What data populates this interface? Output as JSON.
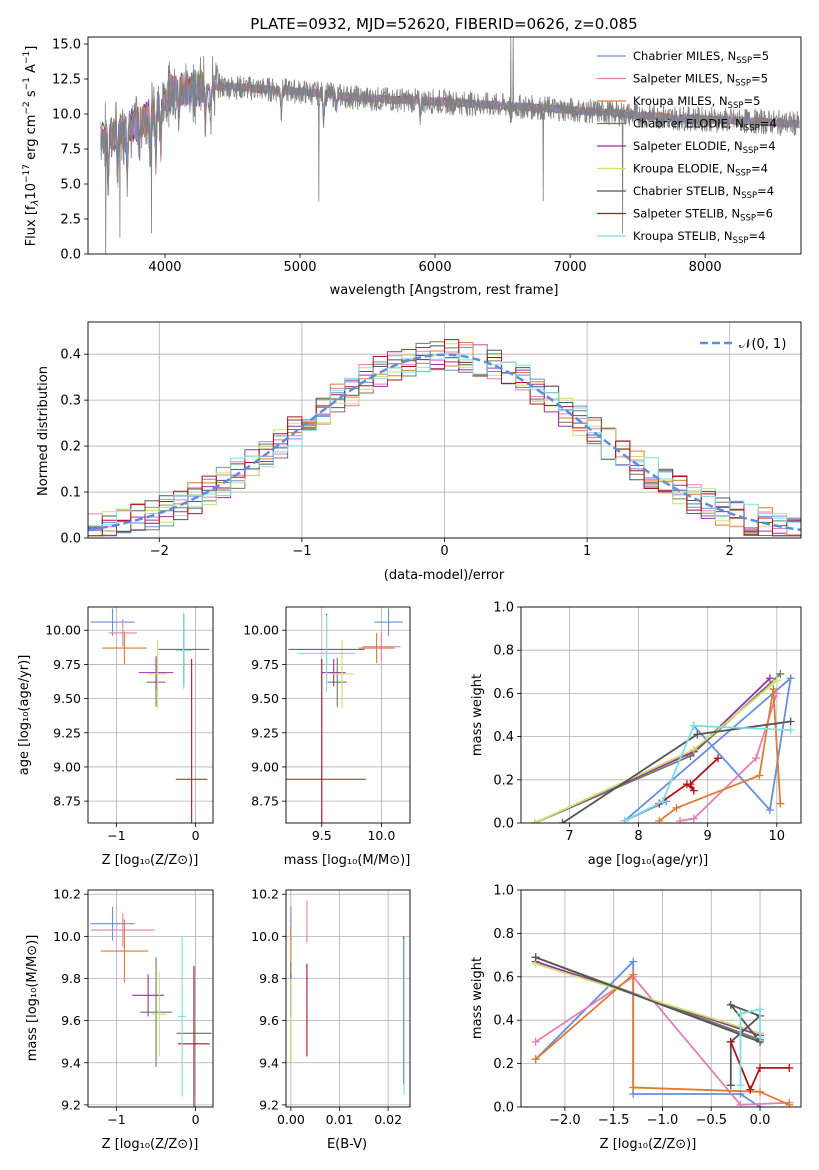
{
  "colors": {
    "chab_miles": "#6a8fdd",
    "salp_miles": "#e37fb8",
    "krou_miles": "#e07b2f",
    "chab_elodie": "#6e7c64",
    "salp_elodie": "#9d2fa8",
    "krou_elodie": "#c9e36a",
    "chab_stelib": "#555555",
    "salp_stelib": "#b0151c",
    "krou_stelib": "#7ddfe0",
    "data": "#808080",
    "gauss": "#5b8fdc"
  },
  "chart_data": [
    {
      "id": "spectrum",
      "type": "line",
      "title": "PLATE=0932, MJD=52620, FIBERID=0626, z=0.085",
      "xlabel": "wavelength [Angstrom, rest frame]",
      "ylabel": "Flux [f",
      "xlim": [
        3430,
        8710
      ],
      "ylim": [
        0,
        15.5
      ],
      "xticks": [
        "4000",
        "5000",
        "6000",
        "7000",
        "8000"
      ],
      "yticks": [
        "0.0",
        "2.5",
        "5.0",
        "7.5",
        "10.0",
        "12.5",
        "15.0"
      ],
      "grid": false,
      "legend_position": "top-right",
      "series": [
        {
          "name": "Chabrier MILES, N",
          "sub": "SSP",
          "suffix": "=5",
          "color": "chab_miles"
        },
        {
          "name": "Salpeter MILES, N",
          "sub": "SSP",
          "suffix": "=5",
          "color": "salp_miles"
        },
        {
          "name": "Kroupa MILES, N",
          "sub": "SSP",
          "suffix": "=5",
          "color": "krou_miles"
        },
        {
          "name": "Chabrier ELODIE, N",
          "sub": "SSP",
          "suffix": "=4",
          "color": "chab_elodie"
        },
        {
          "name": "Salpeter ELODIE, N",
          "sub": "SSP",
          "suffix": "=4",
          "color": "salp_elodie"
        },
        {
          "name": "Kroupa ELODIE, N",
          "sub": "SSP",
          "suffix": "=4",
          "color": "krou_elodie"
        },
        {
          "name": "Chabrier STELIB, N",
          "sub": "SSP",
          "suffix": "=4",
          "color": "chab_stelib"
        },
        {
          "name": "Salpeter STELIB, N",
          "sub": "SSP",
          "suffix": "=6",
          "color": "salp_stelib"
        },
        {
          "name": "Kroupa STELIB, N",
          "sub": "SSP",
          "suffix": "=4",
          "color": "krou_stelib"
        }
      ],
      "continuum": [
        [
          3520,
          8.3
        ],
        [
          3700,
          8.8
        ],
        [
          3900,
          10.0
        ],
        [
          4050,
          11.6
        ],
        [
          4400,
          12.0
        ],
        [
          5000,
          11.6
        ],
        [
          5500,
          11.1
        ],
        [
          6000,
          10.9
        ],
        [
          6500,
          10.6
        ],
        [
          7000,
          10.3
        ],
        [
          7400,
          10.0
        ],
        [
          7800,
          9.7
        ],
        [
          8300,
          9.5
        ],
        [
          8700,
          9.3
        ]
      ],
      "absorption": [
        [
          3580,
          3.5
        ],
        [
          3650,
          2.8
        ],
        [
          3720,
          2.5
        ],
        [
          3810,
          2.0
        ],
        [
          3890,
          3.0
        ],
        [
          3933,
          4.0
        ],
        [
          3968,
          3.5
        ],
        [
          4102,
          2.0
        ],
        [
          4300,
          2.8
        ],
        [
          4340,
          1.5
        ],
        [
          4861,
          1.5
        ],
        [
          5175,
          1.8
        ],
        [
          5270,
          1.0
        ],
        [
          5890,
          1.2
        ],
        [
          6563,
          1.0
        ]
      ],
      "spikes": [
        [
          3560,
          -8.3
        ],
        [
          3665,
          -8.5
        ],
        [
          3900,
          -8.3
        ],
        [
          5140,
          -8.0
        ],
        [
          6560,
          5.0
        ],
        [
          6580,
          4.6
        ],
        [
          6800,
          -7.5
        ],
        [
          7390,
          -8.0
        ]
      ]
    },
    {
      "id": "residuals",
      "type": "step",
      "xlabel": "(data-model)/error",
      "ylabel": "Normed distribution",
      "xlim": [
        -2.5,
        2.5
      ],
      "ylim": [
        0,
        0.47
      ],
      "xticks": [
        "−2",
        "−1",
        "0",
        "1",
        "2"
      ],
      "yticks": [
        "0.0",
        "0.1",
        "0.2",
        "0.3",
        "0.4"
      ],
      "grid": true,
      "bin_width": 0.1,
      "legend_position": "top-right",
      "gauss_label": "𝒩(0, 1)"
    },
    {
      "id": "age-vs-Z",
      "type": "errorbar",
      "xlabel": "Z [log₁₀(Z/Z⊙)]",
      "ylabel": "age  [log₁₀(age/yr)]",
      "xlim": [
        -1.36,
        0.22
      ],
      "ylim": [
        8.59,
        10.17
      ],
      "xticks": [
        "−1",
        "0"
      ],
      "yticks": [
        "8.75",
        "9.00",
        "9.25",
        "9.50",
        "9.75",
        "10.00"
      ],
      "grid": true,
      "points": [
        {
          "x": -1.05,
          "xerr": 0.28,
          "y": 10.06,
          "yerr": 0.1,
          "color": "chab_miles"
        },
        {
          "x": -0.92,
          "xerr": 0.18,
          "y": 9.98,
          "yerr": 0.1,
          "color": "salp_miles"
        },
        {
          "x": -0.9,
          "xerr": 0.28,
          "y": 9.87,
          "yerr": 0.12,
          "color": "krou_miles"
        },
        {
          "x": -0.5,
          "xerr": 0.12,
          "y": 9.62,
          "yerr": 0.18,
          "color": "chab_elodie"
        },
        {
          "x": -0.5,
          "xerr": 0.22,
          "y": 9.69,
          "yerr": 0.12,
          "color": "salp_elodie"
        },
        {
          "x": -0.48,
          "xerr": 0.12,
          "y": 9.68,
          "yerr": 0.25,
          "color": "krou_elodie"
        },
        {
          "x": -0.15,
          "xerr": 0.32,
          "y": 9.86,
          "yerr": 0.26,
          "color": "chab_stelib"
        },
        {
          "x": -0.05,
          "xerr": 0.2,
          "y": 8.91,
          "yerr": 0.88,
          "color": "salp_stelib"
        },
        {
          "x": -0.15,
          "xerr": 0.1,
          "y": 9.85,
          "yerr": 0.28,
          "color": "krou_stelib"
        }
      ]
    },
    {
      "id": "age-vs-mass",
      "type": "errorbar",
      "xlabel": "mass [log₁₀(M/M⊙)]",
      "ylabel": "",
      "xlim": [
        9.2,
        10.24
      ],
      "ylim": [
        8.59,
        10.17
      ],
      "xticks": [
        "9.5",
        "10.0"
      ],
      "yticks": [
        "8.75",
        "9.00",
        "9.25",
        "9.50",
        "9.75",
        "10.00"
      ],
      "grid": true,
      "points": [
        {
          "x": 10.06,
          "xerr": 0.12,
          "y": 10.06,
          "yerr": 0.1,
          "color": "chab_miles"
        },
        {
          "x": 10.0,
          "xerr": 0.16,
          "y": 9.88,
          "yerr": 0.1,
          "color": "salp_miles"
        },
        {
          "x": 9.96,
          "xerr": 0.15,
          "y": 9.87,
          "yerr": 0.11,
          "color": "krou_miles"
        },
        {
          "x": 9.63,
          "xerr": 0.08,
          "y": 9.62,
          "yerr": 0.18,
          "color": "chab_elodie"
        },
        {
          "x": 9.6,
          "xerr": 0.1,
          "y": 9.69,
          "yerr": 0.1,
          "color": "salp_elodie"
        },
        {
          "x": 9.67,
          "xerr": 0.1,
          "y": 9.68,
          "yerr": 0.25,
          "color": "krou_elodie"
        },
        {
          "x": 9.54,
          "xerr": 0.32,
          "y": 9.86,
          "yerr": 0.26,
          "color": "chab_stelib"
        },
        {
          "x": 9.5,
          "xerr": 0.37,
          "y": 8.91,
          "yerr": 0.88,
          "color": "salp_stelib"
        },
        {
          "x": 9.54,
          "xerr": 0.24,
          "y": 9.83,
          "yerr": 0.28,
          "color": "krou_stelib"
        }
      ]
    },
    {
      "id": "mass-weight-vs-age",
      "type": "line",
      "xlabel": "age  [log₁₀(age/yr)]",
      "ylabel": "mass weight",
      "xlim": [
        6.3,
        10.35
      ],
      "ylim": [
        0,
        1
      ],
      "xticks": [
        "7",
        "8",
        "9",
        "10"
      ],
      "yticks": [
        "0.0",
        "0.2",
        "0.4",
        "0.6",
        "0.8",
        "1.0"
      ],
      "grid": true,
      "series": [
        {
          "color": "chab_miles",
          "x": [
            8.8,
            9.9,
            10.2,
            7.8,
            8.4
          ],
          "y": [
            0.45,
            0.06,
            0.67,
            0.01,
            0.1
          ]
        },
        {
          "color": "salp_miles",
          "x": [
            8.6,
            8.8,
            9.7,
            10.0
          ],
          "y": [
            0.01,
            0.02,
            0.3,
            0.6
          ]
        },
        {
          "color": "krou_miles",
          "x": [
            8.3,
            8.55,
            9.75,
            9.95,
            10.05
          ],
          "y": [
            0.01,
            0.07,
            0.22,
            0.62,
            0.09
          ]
        },
        {
          "color": "chab_elodie",
          "x": [
            6.5,
            8.75,
            10.05
          ],
          "y": [
            0.0,
            0.31,
            0.69
          ]
        },
        {
          "color": "salp_elodie",
          "x": [
            6.5,
            8.8,
            9.9
          ],
          "y": [
            0.0,
            0.33,
            0.67
          ]
        },
        {
          "color": "krou_elodie",
          "x": [
            6.5,
            8.8,
            10.0
          ],
          "y": [
            0.0,
            0.34,
            0.66
          ]
        },
        {
          "color": "chab_stelib",
          "x": [
            6.9,
            8.85,
            10.2
          ],
          "y": [
            0.0,
            0.41,
            0.47
          ]
        },
        {
          "color": "salp_stelib",
          "x": [
            8.3,
            8.7,
            8.8,
            8.75,
            9.15
          ],
          "y": [
            0.09,
            0.18,
            0.15,
            0.18,
            0.3
          ]
        },
        {
          "color": "krou_stelib",
          "x": [
            7.8,
            8.35,
            8.8,
            10.2
          ],
          "y": [
            0.01,
            0.1,
            0.45,
            0.43
          ]
        }
      ]
    },
    {
      "id": "mass-vs-Z",
      "type": "errorbar",
      "xlabel": "Z [log₁₀(Z/Z⊙)]",
      "ylabel": "mass [log₁₀(M/M⊙)]",
      "xlim": [
        -1.36,
        0.22
      ],
      "ylim": [
        9.19,
        10.22
      ],
      "xticks": [
        "−1",
        "0"
      ],
      "yticks": [
        "9.2",
        "9.4",
        "9.6",
        "9.8",
        "10.0",
        "10.2"
      ],
      "grid": true,
      "points": [
        {
          "x": -1.05,
          "xerr": 0.28,
          "y": 10.06,
          "yerr": 0.08,
          "color": "chab_miles"
        },
        {
          "x": -0.92,
          "xerr": 0.4,
          "y": 10.03,
          "yerr": 0.08,
          "color": "salp_miles"
        },
        {
          "x": -0.9,
          "xerr": 0.3,
          "y": 9.93,
          "yerr": 0.15,
          "color": "krou_miles"
        },
        {
          "x": -0.5,
          "xerr": 0.2,
          "y": 9.64,
          "yerr": 0.26,
          "color": "chab_elodie"
        },
        {
          "x": -0.6,
          "xerr": 0.2,
          "y": 9.72,
          "yerr": 0.1,
          "color": "salp_elodie"
        },
        {
          "x": -0.46,
          "xerr": 0.1,
          "y": 9.63,
          "yerr": 0.2,
          "color": "krou_elodie"
        },
        {
          "x": -0.02,
          "xerr": 0.22,
          "y": 9.54,
          "yerr": 0.3,
          "color": "chab_stelib"
        },
        {
          "x": -0.02,
          "xerr": 0.2,
          "y": 9.49,
          "yerr": 0.37,
          "color": "salp_stelib"
        },
        {
          "x": -0.17,
          "xerr": 0.05,
          "y": 9.62,
          "yerr": 0.38,
          "color": "krou_stelib"
        }
      ]
    },
    {
      "id": "mass-vs-ebv",
      "type": "errorbar",
      "xlabel": "E(B-V)",
      "ylabel": "",
      "xlim": [
        -0.001,
        0.0245
      ],
      "ylim": [
        9.19,
        10.22
      ],
      "xticks": [
        "0.00",
        "0.01",
        "0.02"
      ],
      "yticks": [
        "9.2",
        "9.4",
        "9.6",
        "9.8",
        "10.0",
        "10.2"
      ],
      "grid": true,
      "points": [
        {
          "x": 0.0,
          "xerr": 0.0,
          "y": 10.06,
          "yerr": 0.08,
          "color": "chab_miles"
        },
        {
          "x": 0.0033,
          "xerr": 0.0,
          "y": 10.07,
          "yerr": 0.1,
          "color": "salp_miles"
        },
        {
          "x": 0.0,
          "xerr": 0.0,
          "y": 9.93,
          "yerr": 0.12,
          "color": "krou_miles"
        },
        {
          "x": 0.0,
          "xerr": 0.0,
          "y": 9.64,
          "yerr": 0.24,
          "color": "chab_elodie"
        },
        {
          "x": 0.0,
          "xerr": 0.0,
          "y": 9.72,
          "yerr": 0.1,
          "color": "salp_elodie"
        },
        {
          "x": 0.0,
          "xerr": 0.0,
          "y": 9.6,
          "yerr": 0.2,
          "color": "krou_elodie"
        },
        {
          "x": 0.0232,
          "xerr": 0.0,
          "y": 9.65,
          "yerr": 0.35,
          "color": "chab_stelib"
        },
        {
          "x": 0.0033,
          "xerr": 0.0,
          "y": 9.65,
          "yerr": 0.22,
          "color": "salp_stelib"
        },
        {
          "x": 0.0233,
          "xerr": 0.0,
          "y": 9.62,
          "yerr": 0.37,
          "color": "krou_stelib"
        }
      ]
    },
    {
      "id": "mass-weight-vs-Z",
      "type": "line",
      "xlabel": "Z [log₁₀(Z/Z⊙)]",
      "ylabel": "mass weight",
      "xlim": [
        -2.45,
        0.42
      ],
      "ylim": [
        0,
        1
      ],
      "xticks": [
        "−2.0",
        "−1.5",
        "−1.0",
        "−0.5",
        "0.0"
      ],
      "yticks": [
        "0.0",
        "0.2",
        "0.4",
        "0.6",
        "0.8",
        "1.0"
      ],
      "grid": true,
      "series": [
        {
          "color": "chab_miles",
          "x": [
            -2.3,
            -1.3,
            -1.3,
            -0.2,
            0.0,
            0.0
          ],
          "y": [
            0.22,
            0.67,
            0.06,
            0.06,
            0.0,
            0.0
          ]
        },
        {
          "color": "salp_miles",
          "x": [
            -2.3,
            -1.3,
            -0.2,
            0.3
          ],
          "y": [
            0.3,
            0.6,
            0.01,
            0.02
          ]
        },
        {
          "color": "krou_miles",
          "x": [
            -2.3,
            -1.3,
            -1.3,
            0.0,
            0.3
          ],
          "y": [
            0.22,
            0.61,
            0.09,
            0.07,
            0.01
          ]
        },
        {
          "color": "chab_elodie",
          "x": [
            -2.3,
            0.0
          ],
          "y": [
            0.69,
            0.31
          ]
        },
        {
          "color": "salp_elodie",
          "x": [
            -2.3,
            0.0
          ],
          "y": [
            0.67,
            0.33
          ]
        },
        {
          "color": "krou_elodie",
          "x": [
            -2.3,
            0.0
          ],
          "y": [
            0.66,
            0.34
          ]
        },
        {
          "color": "chab_stelib",
          "x": [
            -2.3,
            0.0,
            -0.3,
            0.0,
            -0.3,
            -0.3
          ],
          "y": [
            0.69,
            0.3,
            0.47,
            0.42,
            0.3,
            0.1
          ]
        },
        {
          "color": "salp_stelib",
          "x": [
            -0.3,
            -0.1,
            0.0,
            0.3
          ],
          "y": [
            0.3,
            0.08,
            0.18,
            0.18
          ]
        },
        {
          "color": "krou_stelib",
          "x": [
            -0.2,
            -0.2,
            0.0,
            0.0
          ],
          "y": [
            0.1,
            0.43,
            0.45,
            0.32
          ]
        }
      ]
    }
  ]
}
